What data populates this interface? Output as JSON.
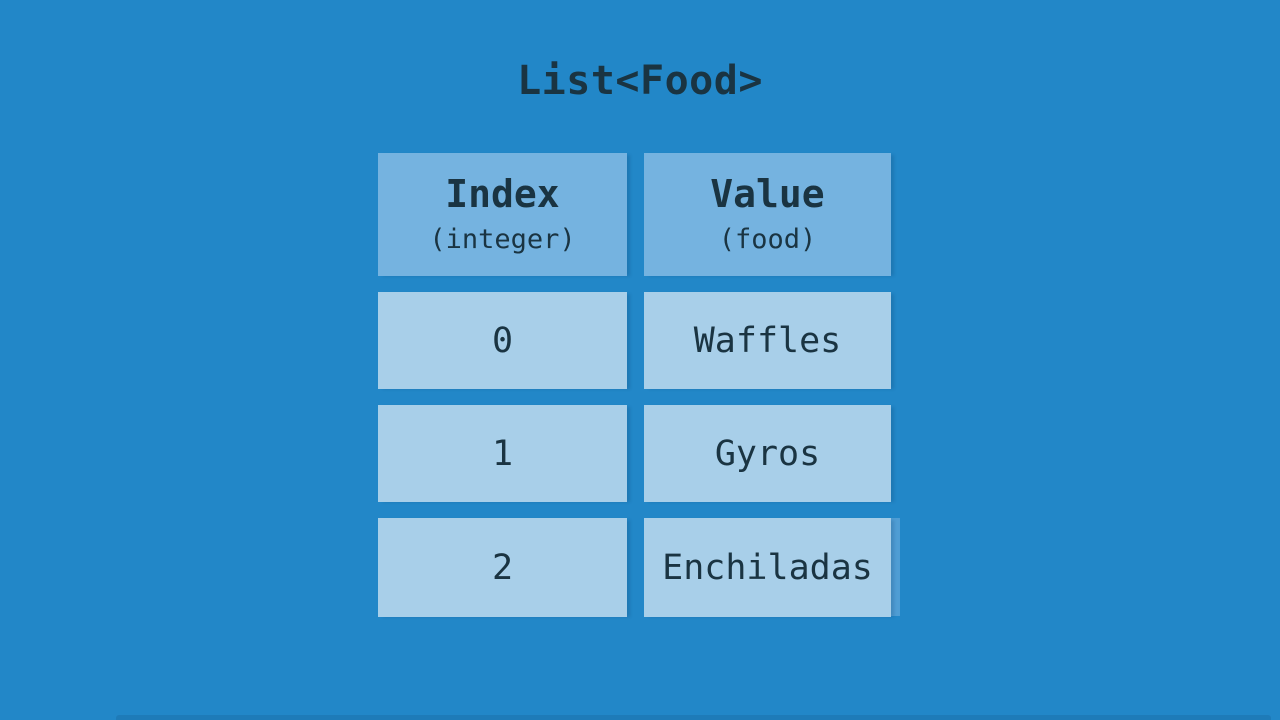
{
  "title": "List<Food>",
  "colors": {
    "background": "#2287c8",
    "header_cell": "#75b3e0",
    "data_cell": "#a8cfe9",
    "text": "#1a3442",
    "ghost_edge": "#4f9dd4"
  },
  "table": {
    "columns": [
      {
        "label": "Index",
        "type_label": "(integer)"
      },
      {
        "label": "Value",
        "type_label": "(food)"
      }
    ],
    "rows": [
      {
        "index": "0",
        "value": "Waffles"
      },
      {
        "index": "1",
        "value": "Gyros"
      },
      {
        "index": "2",
        "value": "Enchiladas"
      }
    ]
  }
}
